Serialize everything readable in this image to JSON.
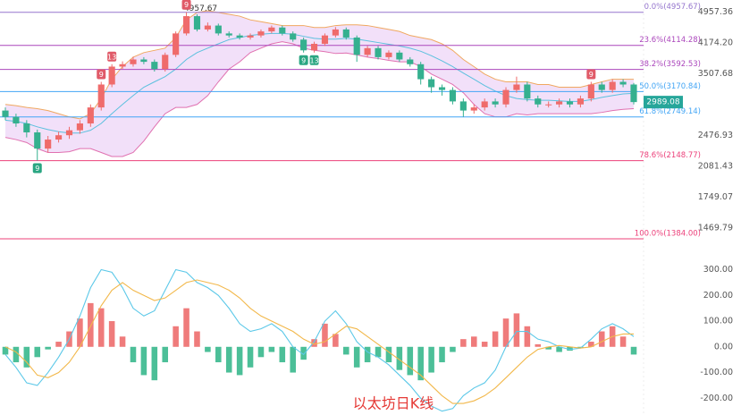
{
  "chart_data": [
    {
      "type": "candlestick",
      "title": "以太坊日K线",
      "scale": "log",
      "ylim": [
        1296,
        5312
      ],
      "yticks": [
        4957.36,
        {
          "value": 4174.2,
          "label": "4174.20"
        },
        3507.68,
        2476.93,
        2081.43,
        1749.07,
        1469.79
      ],
      "grid": false,
      "up_color": "#ef6b6b",
      "down_color": "#35b08f",
      "candles": {
        "open": [
          2850,
          2750,
          2650,
          2520,
          2300,
          2420,
          2480,
          2550,
          2650,
          2900,
          3300,
          3650,
          3700,
          3800,
          3750,
          3600,
          3900,
          4400,
          4850,
          4500,
          4600,
          4400,
          4350,
          4300,
          4350,
          4450,
          4550,
          4400,
          4250,
          4000,
          4150,
          4350,
          4500,
          4300,
          3900,
          4050,
          3850,
          3950,
          3800,
          3700,
          3400,
          3250,
          3200,
          3000,
          2850,
          2900,
          3000,
          2950,
          3200,
          3300,
          3050,
          2950,
          2950,
          3000,
          2950,
          3050,
          3300,
          3200,
          3350,
          3300
        ],
        "high": [
          2900,
          2800,
          2700,
          2560,
          2470,
          2530,
          2600,
          2700,
          2950,
          3350,
          3700,
          3760,
          3860,
          3850,
          3800,
          3950,
          4450,
          4957.67,
          4900,
          4680,
          4650,
          4450,
          4400,
          4400,
          4500,
          4600,
          4600,
          4450,
          4300,
          4200,
          4400,
          4560,
          4550,
          4350,
          4100,
          4100,
          4000,
          4000,
          3850,
          3750,
          3450,
          3300,
          3250,
          3050,
          2950,
          3050,
          3050,
          3250,
          3450,
          3350,
          3100,
          3000,
          3050,
          3050,
          3100,
          3350,
          3350,
          3400,
          3400,
          3330
        ],
        "low": [
          2700,
          2600,
          2450,
          2150,
          2250,
          2380,
          2430,
          2500,
          2600,
          2850,
          3250,
          3600,
          3650,
          3700,
          3550,
          3550,
          3850,
          4350,
          4450,
          4450,
          4350,
          4300,
          4250,
          4250,
          4300,
          4400,
          4350,
          4200,
          3950,
          3950,
          4100,
          4300,
          4250,
          3750,
          3850,
          3800,
          3800,
          3750,
          3650,
          3300,
          3150,
          3100,
          2950,
          2750,
          2800,
          2850,
          2900,
          2900,
          3150,
          3000,
          2900,
          2900,
          2900,
          2900,
          2900,
          3000,
          3150,
          3150,
          3250,
          2950
        ],
        "close": [
          2750,
          2650,
          2520,
          2300,
          2420,
          2480,
          2550,
          2650,
          2900,
          3300,
          3650,
          3700,
          3800,
          3750,
          3600,
          3900,
          4400,
          4850,
          4500,
          4600,
          4400,
          4350,
          4300,
          4350,
          4450,
          4550,
          4400,
          4250,
          4000,
          4150,
          4350,
          4500,
          4300,
          3900,
          4050,
          3850,
          3950,
          3800,
          3700,
          3400,
          3250,
          3200,
          3000,
          2850,
          2900,
          3000,
          2950,
          3200,
          3300,
          3050,
          2950,
          2950,
          3000,
          2950,
          3050,
          3300,
          3200,
          3350,
          3300,
          2989.08
        ]
      },
      "bands": {
        "upper": [
          2950,
          2930,
          2900,
          2880,
          2850,
          2800,
          2750,
          2720,
          2800,
          3050,
          3400,
          3650,
          3850,
          3950,
          4000,
          4050,
          4300,
          4750,
          4950,
          5000,
          4950,
          4900,
          4850,
          4750,
          4700,
          4650,
          4600,
          4600,
          4600,
          4550,
          4550,
          4600,
          4620,
          4620,
          4600,
          4550,
          4500,
          4450,
          4350,
          4300,
          4250,
          4150,
          4000,
          3800,
          3650,
          3500,
          3400,
          3350,
          3350,
          3350,
          3300,
          3300,
          3250,
          3250,
          3250,
          3300,
          3350,
          3400,
          3400,
          3400
        ],
        "middle": [
          2700,
          2680,
          2650,
          2600,
          2560,
          2530,
          2510,
          2510,
          2550,
          2650,
          2800,
          2950,
          3100,
          3250,
          3350,
          3450,
          3600,
          3800,
          3950,
          4050,
          4150,
          4250,
          4300,
          4350,
          4380,
          4400,
          4400,
          4380,
          4330,
          4280,
          4260,
          4260,
          4280,
          4260,
          4220,
          4180,
          4140,
          4100,
          4050,
          3980,
          3880,
          3770,
          3650,
          3520,
          3400,
          3280,
          3180,
          3100,
          3050,
          3030,
          3020,
          3020,
          3010,
          3000,
          3000,
          3030,
          3070,
          3100,
          3130,
          3140
        ],
        "lower": [
          2450,
          2420,
          2380,
          2300,
          2250,
          2250,
          2260,
          2300,
          2300,
          2250,
          2200,
          2200,
          2250,
          2400,
          2600,
          2800,
          2900,
          2900,
          2950,
          3100,
          3350,
          3600,
          3750,
          3950,
          4050,
          4150,
          4200,
          4150,
          4050,
          4000,
          3970,
          3930,
          3940,
          3900,
          3850,
          3820,
          3780,
          3750,
          3750,
          3650,
          3500,
          3400,
          3300,
          3150,
          2950,
          2800,
          2750,
          2750,
          2800,
          2780,
          2800,
          2800,
          2800,
          2800,
          2800,
          2800,
          2820,
          2850,
          2870,
          2880
        ],
        "upper_color": "#f0a860",
        "middle_color": "#5bc0de",
        "lower_color": "#e070b0",
        "fill_color": "#d9a6ee"
      },
      "fib_levels": [
        {
          "label": "0.0%(4957.67)",
          "value": 4957.67,
          "color": "#9575cd"
        },
        {
          "label": "23.6%(4114.28)",
          "value": 4114.28,
          "color": "#ab47bc"
        },
        {
          "label": "38.2%(3592.53)",
          "value": 3592.53,
          "color": "#ab47bc"
        },
        {
          "label": "50.0%(3170.84)",
          "value": 3170.84,
          "color": "#42a5f5"
        },
        {
          "label": "61.8%(2749.14)",
          "value": 2749.14,
          "color": "#42a5f5"
        },
        {
          "label": "78.6%(2148.77)",
          "value": 2148.77,
          "color": "#ec407a"
        },
        {
          "label": "100.0%(1384.00)",
          "value": 1384.0,
          "color": "#ec407a"
        }
      ],
      "td_top": [
        null,
        null,
        null,
        null,
        null,
        null,
        null,
        null,
        null,
        "9",
        "13",
        null,
        null,
        null,
        null,
        null,
        null,
        "9",
        null,
        null,
        null,
        null,
        null,
        null,
        null,
        null,
        null,
        null,
        null,
        null,
        null,
        null,
        null,
        null,
        null,
        null,
        null,
        null,
        null,
        null,
        null,
        null,
        null,
        null,
        null,
        null,
        null,
        null,
        null,
        null,
        null,
        null,
        null,
        null,
        null,
        "9",
        null,
        null,
        null,
        null
      ],
      "td_bottom": [
        null,
        null,
        null,
        "9",
        null,
        null,
        null,
        null,
        null,
        null,
        null,
        null,
        null,
        null,
        null,
        null,
        null,
        null,
        null,
        null,
        null,
        null,
        null,
        null,
        null,
        null,
        null,
        null,
        "9",
        "13",
        null,
        null,
        null,
        null,
        null,
        null,
        null,
        null,
        null,
        null,
        null,
        null,
        null,
        null,
        null,
        null,
        null,
        null,
        null,
        null,
        null,
        null,
        null,
        null,
        null,
        null,
        null,
        null,
        null,
        null
      ],
      "td_top_color": "#e05a68",
      "td_bottom_color": "#2aa682",
      "last_price_color": "#26a69a"
    },
    {
      "type": "macd",
      "ylim": [
        -265,
        340
      ],
      "yticks": [
        {
          "value": 300,
          "label": "300.00"
        },
        {
          "value": 200,
          "label": "200.00"
        },
        {
          "value": 100,
          "label": "100.00"
        },
        {
          "value": 0,
          "label": "0.00"
        },
        {
          "value": -100,
          "label": "-100.00"
        },
        {
          "value": -200,
          "label": "-200.00"
        }
      ],
      "histogram": [
        -30,
        -60,
        -80,
        -40,
        -10,
        20,
        60,
        110,
        170,
        150,
        100,
        40,
        -60,
        -110,
        -130,
        -60,
        80,
        150,
        60,
        -20,
        -60,
        -100,
        -110,
        -80,
        -40,
        -20,
        -60,
        -100,
        -50,
        30,
        90,
        50,
        -30,
        -80,
        -60,
        -40,
        -60,
        -90,
        -110,
        -130,
        -100,
        -60,
        -20,
        30,
        40,
        20,
        60,
        110,
        130,
        80,
        10,
        -10,
        -20,
        -15,
        -5,
        20,
        60,
        80,
        40,
        -30
      ],
      "dif": [
        -30,
        -80,
        -140,
        -150,
        -100,
        -40,
        30,
        120,
        230,
        300,
        290,
        230,
        150,
        120,
        140,
        220,
        300,
        290,
        250,
        230,
        200,
        150,
        90,
        60,
        70,
        90,
        60,
        0,
        -30,
        20,
        100,
        140,
        90,
        20,
        -20,
        -40,
        -70,
        -110,
        -150,
        -200,
        -230,
        -250,
        -240,
        -190,
        -160,
        -140,
        -90,
        0,
        60,
        60,
        30,
        20,
        0,
        -10,
        -5,
        30,
        70,
        90,
        70,
        40
      ],
      "dea": [
        0,
        -20,
        -60,
        -110,
        -120,
        -100,
        -60,
        0,
        80,
        160,
        220,
        250,
        220,
        200,
        180,
        190,
        220,
        250,
        260,
        250,
        240,
        220,
        190,
        150,
        120,
        100,
        80,
        60,
        30,
        10,
        20,
        50,
        80,
        70,
        40,
        10,
        -20,
        -50,
        -80,
        -110,
        -150,
        -190,
        -220,
        -220,
        -210,
        -190,
        -160,
        -120,
        -80,
        -40,
        -10,
        0,
        5,
        0,
        -5,
        0,
        20,
        40,
        50,
        50
      ],
      "up_color": "#ef7b7b",
      "down_color": "#4cbf98",
      "dif_color": "#5bc8e8",
      "dea_color": "#f2b84b"
    }
  ]
}
